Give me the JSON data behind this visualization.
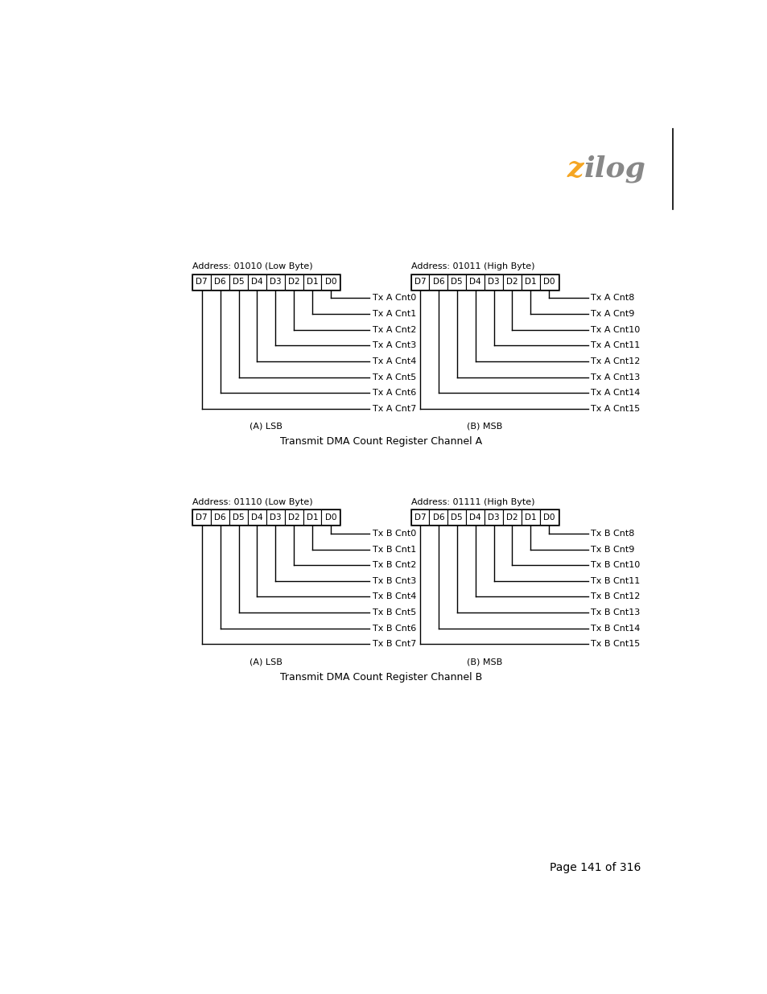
{
  "title_top_color_z": "#F5A623",
  "title_top_color_ilog": "#888888",
  "page_footer": "Page 141 of 316",
  "diagrams": [
    {
      "left": {
        "address": "Address: 01010 (Low Byte)",
        "bits": [
          "D7",
          "D6",
          "D5",
          "D4",
          "D3",
          "D2",
          "D1",
          "D0"
        ],
        "signals": [
          "Tx A Cnt0",
          "Tx A Cnt1",
          "Tx A Cnt2",
          "Tx A Cnt3",
          "Tx A Cnt4",
          "Tx A Cnt5",
          "Tx A Cnt6",
          "Tx A Cnt7"
        ],
        "label": "(A) LSB"
      },
      "right": {
        "address": "Address: 01011 (High Byte)",
        "bits": [
          "D7",
          "D6",
          "D5",
          "D4",
          "D3",
          "D2",
          "D1",
          "D0"
        ],
        "signals": [
          "Tx A Cnt8",
          "Tx A Cnt9",
          "Tx A Cnt10",
          "Tx A Cnt11",
          "Tx A Cnt12",
          "Tx A Cnt13",
          "Tx A Cnt14",
          "Tx A Cnt15"
        ],
        "label": "(B) MSB"
      },
      "caption": "Transmit DMA Count Register Channel A"
    },
    {
      "left": {
        "address": "Address: 01110 (Low Byte)",
        "bits": [
          "D7",
          "D6",
          "D5",
          "D4",
          "D3",
          "D2",
          "D1",
          "D0"
        ],
        "signals": [
          "Tx B Cnt0",
          "Tx B Cnt1",
          "Tx B Cnt2",
          "Tx B Cnt3",
          "Tx B Cnt4",
          "Tx B Cnt5",
          "Tx B Cnt6",
          "Tx B Cnt7"
        ],
        "label": "(A) LSB"
      },
      "right": {
        "address": "Address: 01111 (High Byte)",
        "bits": [
          "D7",
          "D6",
          "D5",
          "D4",
          "D3",
          "D2",
          "D1",
          "D0"
        ],
        "signals": [
          "Tx B Cnt8",
          "Tx B Cnt9",
          "Tx B Cnt10",
          "Tx B Cnt11",
          "Tx B Cnt12",
          "Tx B Cnt13",
          "Tx B Cnt14",
          "Tx B Cnt15"
        ],
        "label": "(B) MSB"
      },
      "caption": "Transmit DMA Count Register Channel B"
    }
  ],
  "fig_width": 9.54,
  "fig_height": 12.35,
  "dpi": 100
}
